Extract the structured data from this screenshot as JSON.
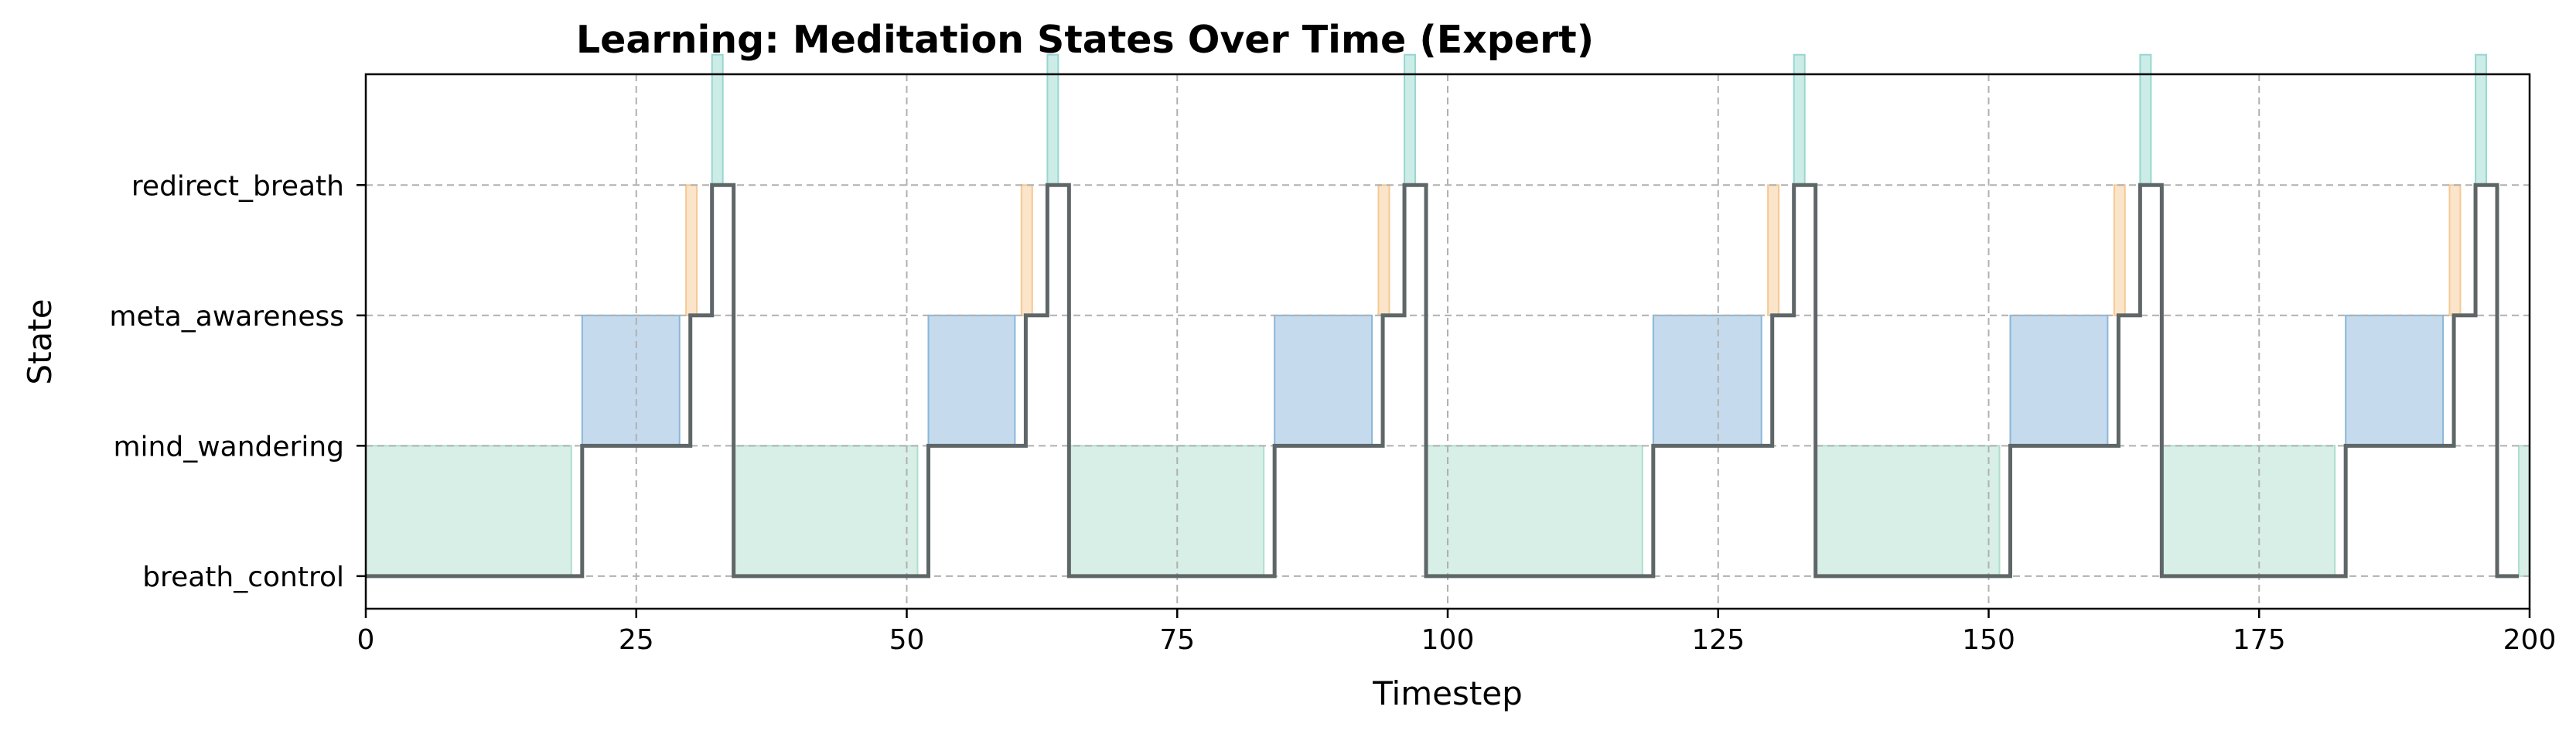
{
  "chart_data": {
    "type": "step",
    "title": "Learning: Meditation States Over Time (Expert)",
    "xlabel": "Timestep",
    "ylabel": "State",
    "xlim": [
      0,
      200
    ],
    "ylim": [
      -0.25,
      3.85
    ],
    "xticks": [
      0,
      25,
      50,
      75,
      100,
      125,
      150,
      175,
      200
    ],
    "xtick_labels": [
      "0",
      "25",
      "50",
      "75",
      "100",
      "125",
      "150",
      "175",
      "200"
    ],
    "categories": [
      "breath_control",
      "mind_wandering",
      "meta_awareness",
      "redirect_breath"
    ],
    "grid": true,
    "state_series": {
      "name": "state",
      "x": [
        0,
        20,
        30,
        32,
        34,
        52,
        61,
        63,
        65,
        84,
        94,
        96,
        98,
        119,
        130,
        132,
        134,
        152,
        162,
        164,
        166,
        183,
        193,
        195,
        197,
        199
      ],
      "y": [
        0,
        1,
        2,
        3,
        0,
        1,
        2,
        3,
        0,
        1,
        2,
        3,
        0,
        1,
        2,
        3,
        0,
        1,
        2,
        3,
        0,
        1,
        2,
        3,
        0,
        0
      ]
    },
    "shaded_regions": [
      {
        "x0": 0,
        "x1": 19,
        "level": 1,
        "color": "#a7dcc8"
      },
      {
        "x0": 20,
        "x1": 29,
        "level": 2,
        "color": "#7fb0d6"
      },
      {
        "x0": 29.6,
        "x1": 30.6,
        "level": 3,
        "color": "#f4c48a"
      },
      {
        "x0": 32,
        "x1": 33,
        "level": 4,
        "color": "#8ed4cb"
      },
      {
        "x0": 34,
        "x1": 51,
        "level": 1,
        "color": "#a7dcc8"
      },
      {
        "x0": 52,
        "x1": 60,
        "level": 2,
        "color": "#7fb0d6"
      },
      {
        "x0": 60.6,
        "x1": 61.6,
        "level": 3,
        "color": "#f4c48a"
      },
      {
        "x0": 63,
        "x1": 64,
        "level": 4,
        "color": "#8ed4cb"
      },
      {
        "x0": 65,
        "x1": 83,
        "level": 1,
        "color": "#a7dcc8"
      },
      {
        "x0": 84,
        "x1": 93,
        "level": 2,
        "color": "#7fb0d6"
      },
      {
        "x0": 93.6,
        "x1": 94.6,
        "level": 3,
        "color": "#f4c48a"
      },
      {
        "x0": 96,
        "x1": 97,
        "level": 4,
        "color": "#8ed4cb"
      },
      {
        "x0": 98,
        "x1": 118,
        "level": 1,
        "color": "#a7dcc8"
      },
      {
        "x0": 119,
        "x1": 129,
        "level": 2,
        "color": "#7fb0d6"
      },
      {
        "x0": 129.6,
        "x1": 130.6,
        "level": 3,
        "color": "#f4c48a"
      },
      {
        "x0": 132,
        "x1": 133,
        "level": 4,
        "color": "#8ed4cb"
      },
      {
        "x0": 134,
        "x1": 151,
        "level": 1,
        "color": "#a7dcc8"
      },
      {
        "x0": 152,
        "x1": 161,
        "level": 2,
        "color": "#7fb0d6"
      },
      {
        "x0": 161.6,
        "x1": 162.6,
        "level": 3,
        "color": "#f4c48a"
      },
      {
        "x0": 164,
        "x1": 165,
        "level": 4,
        "color": "#8ed4cb"
      },
      {
        "x0": 166,
        "x1": 182,
        "level": 1,
        "color": "#a7dcc8"
      },
      {
        "x0": 183,
        "x1": 192,
        "level": 2,
        "color": "#7fb0d6"
      },
      {
        "x0": 192.6,
        "x1": 193.6,
        "level": 3,
        "color": "#f4c48a"
      },
      {
        "x0": 195,
        "x1": 196,
        "level": 4,
        "color": "#8ed4cb"
      },
      {
        "x0": 199,
        "x1": 200,
        "level": 1,
        "color": "#a7dcc8"
      }
    ],
    "line_color": "#5f6668"
  }
}
